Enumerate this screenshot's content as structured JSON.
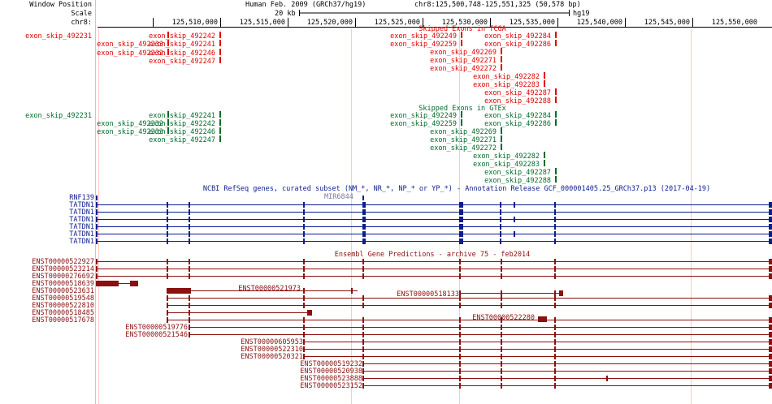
{
  "colors": {
    "red": "#e00000",
    "green": "#006a2a",
    "blue": "#0b1d8c",
    "ensembl": "#8b1010",
    "ruler": "#000000",
    "guide": "#ffc8c8",
    "header": "#000000"
  },
  "header": {
    "window_position_label": "Window Position",
    "scale_label": "Scale",
    "chrom_label": "chr8:",
    "assembly": "Human Feb. 2009 (GRCh37/hg19)",
    "position": "chr8:125,500,748-125,551,325 (50,578 bp)",
    "scale_value": "20 kb",
    "db": "hg19",
    "ticks": [
      "125,510,000",
      "125,515,000",
      "125,520,000",
      "125,525,000",
      "125,530,000",
      "125,535,000",
      "125,540,000",
      "125,545,000",
      "125,550,000"
    ]
  },
  "tracks": {
    "tcga": {
      "title": "Skipped Exons in TCGA",
      "left_label": "exon_skip_492231",
      "items": [
        "exon_skip_492233",
        "exon_skip_492232",
        "exon_skip_492242",
        "exon_skip_492241",
        "exon_skip_492246",
        "exon_skip_492247",
        "exon_skip_492249",
        "exon_skip_492259",
        "exon_skip_492284",
        "exon_skip_492286",
        "exon_skip_492269",
        "exon_skip_492271",
        "exon_skip_492272",
        "exon_skip_492282",
        "exon_skip_492283",
        "exon_skip_492287",
        "exon_skip_492288"
      ]
    },
    "gtex": {
      "title": "Skipped Exons in GTEx",
      "left_label": "exon_skip_492231",
      "items": [
        "exon_skip_492232",
        "exon_skip_492233",
        "exon_skip_492241",
        "exon_skip_492242",
        "exon_skip_492246",
        "exon_skip_492247",
        "exon_skip_492249",
        "exon_skip_492259",
        "exon_skip_492284",
        "exon_skip_492286",
        "exon_skip_492269",
        "exon_skip_492271",
        "exon_skip_492272",
        "exon_skip_492282",
        "exon_skip_492283",
        "exon_skip_492287",
        "exon_skip_492288"
      ]
    },
    "refseq": {
      "title": "NCBI RefSeq genes, curated subset (NM_*, NR_*, NP_* or YP_*) - Annotation Release GCF_000001405.25_GRCh37.p13 (2017-04-19)",
      "labels": [
        "RNF139",
        "TATDN1",
        "TATDN1",
        "TATDN1",
        "TATDN1",
        "TATDN1",
        "TATDN1"
      ],
      "mir_label": "MIR6844"
    },
    "ensembl": {
      "title": "Ensembl Gene Predictions - archive 75 - feb2014",
      "labels": [
        "ENST00000522927",
        "ENST00000523214",
        "ENST00000276692",
        "ENST00000518639",
        "ENST00000523631",
        "ENST00000519548",
        "ENST00000522810",
        "ENST00000518485",
        "ENST00000517678",
        "ENST00000519776",
        "ENST00000521546",
        "ENST00000605953",
        "ENST00000522310",
        "ENST00000520321",
        "ENST00000519232",
        "ENST00000520938",
        "ENST00000523888",
        "ENST00000523152"
      ],
      "inline_labels": [
        "ENST00000521973",
        "ENST00000518133",
        "ENST00000522280"
      ]
    }
  }
}
